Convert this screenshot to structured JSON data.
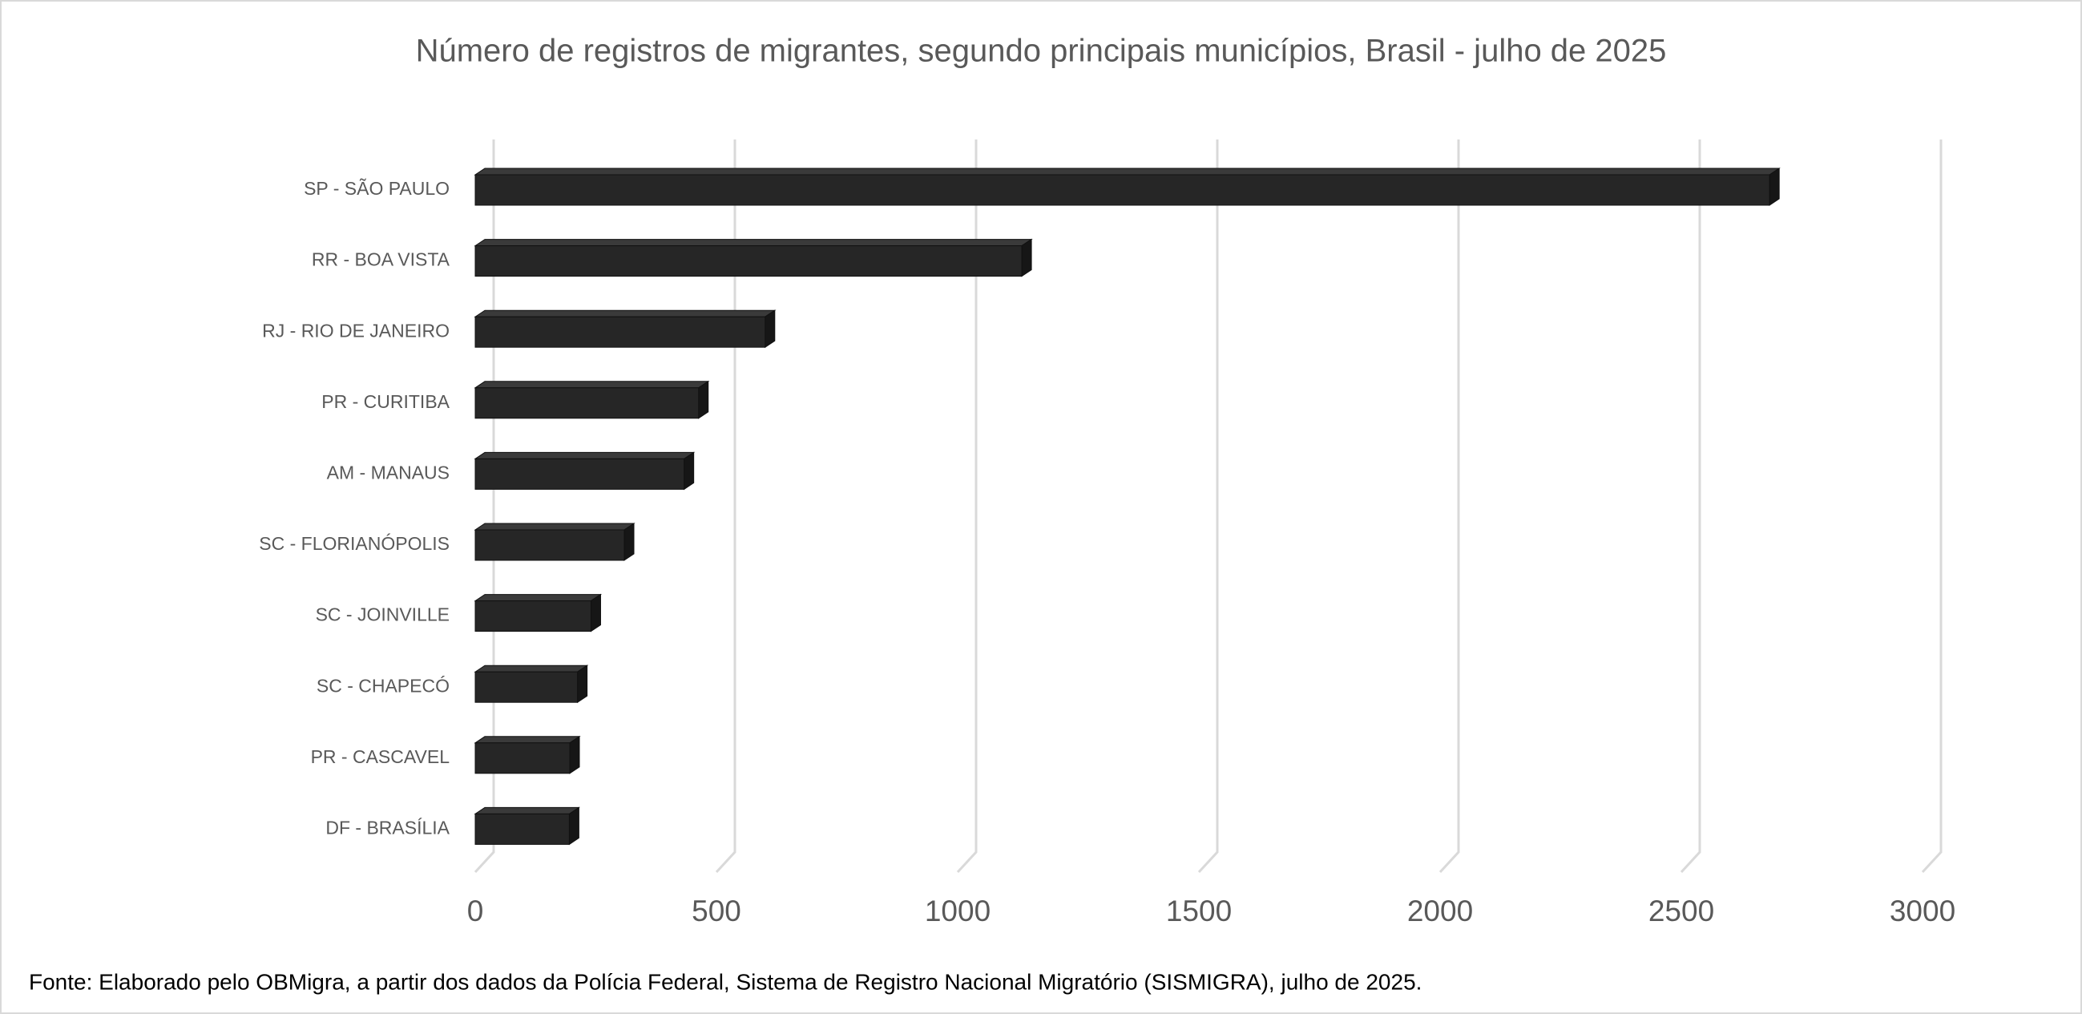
{
  "chart_data": {
    "type": "bar3d_horizontal",
    "title": "Número de registros de migrantes, segundo principais municípios, Brasil - julho de 2025",
    "categories": [
      "SP - SÃO PAULO",
      "RR - BOA VISTA",
      "RJ - RIO DE JANEIRO",
      "PR - CURITIBA",
      "AM - MANAUS",
      "SC - FLORIANÓPOLIS",
      "SC - JOINVILLE",
      "SC - CHAPECÓ",
      "PR - CASCAVEL",
      "DF - BRASÍLIA"
    ],
    "values": [
      2683,
      1133,
      601,
      463,
      433,
      309,
      240,
      212,
      196,
      195
    ],
    "color": "#262626",
    "xlim": [
      0,
      3000
    ],
    "xticks": [
      0,
      500,
      1000,
      1500,
      2000,
      2500,
      3000
    ],
    "grid": true,
    "footnote": "Fonte: Elaborado pelo OBMigra, a partir dos dados da Polícia Federal, Sistema de Registro Nacional Migratório (SISMIGRA), julho de 2025."
  }
}
